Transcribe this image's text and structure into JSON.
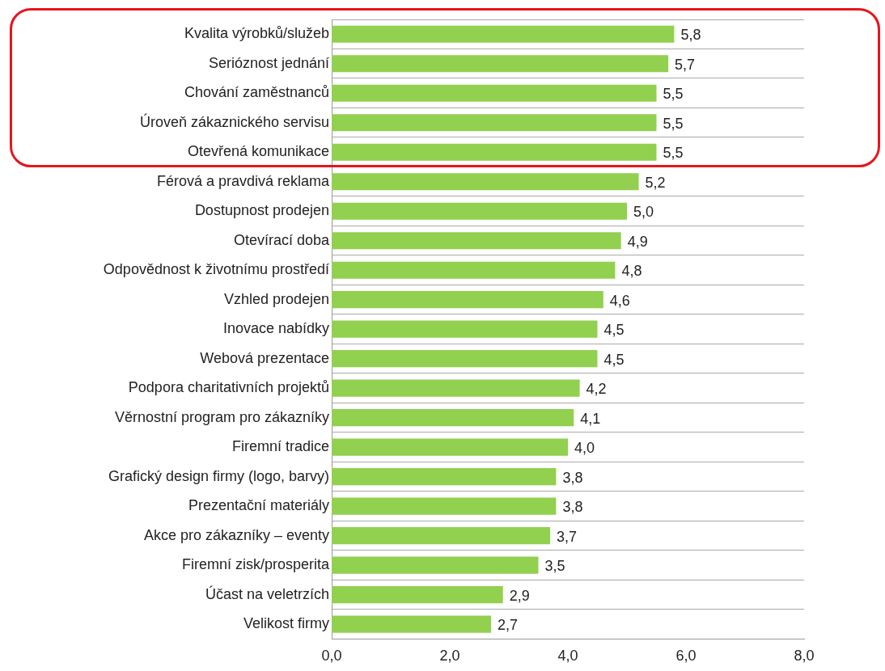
{
  "chart_data": {
    "type": "bar",
    "orientation": "horizontal",
    "categories": [
      "Kvalita výrobků/služeb",
      "Serióznost jednání",
      "Chování zaměstnanců",
      "Úroveň zákaznického servisu",
      "Otevřená komunikace",
      "Férová a pravdivá reklama",
      "Dostupnost prodejen",
      "Otevírací doba",
      "Odpovědnost k životnímu prostředí",
      "Vzhled prodejen",
      "Inovace nabídky",
      "Webová prezentace",
      "Podpora charitativních projektů",
      "Věrnostní program pro zákazníky",
      "Firemní tradice",
      "Grafický design firmy (logo, barvy)",
      "Prezentační materiály",
      "Akce pro zákazníky – eventy",
      "Firemní zisk/prosperita",
      "Účast na veletrzích",
      "Velikost firmy"
    ],
    "values": [
      5.8,
      5.7,
      5.5,
      5.5,
      5.5,
      5.2,
      5.0,
      4.9,
      4.8,
      4.6,
      4.5,
      4.5,
      4.2,
      4.1,
      4.0,
      3.8,
      3.8,
      3.7,
      3.5,
      2.9,
      2.7
    ],
    "value_labels": [
      "5,8",
      "5,7",
      "5,5",
      "5,5",
      "5,5",
      "5,2",
      "5,0",
      "4,9",
      "4,8",
      "4,6",
      "4,5",
      "4,5",
      "4,2",
      "4,1",
      "4,0",
      "3,8",
      "3,8",
      "3,7",
      "3,5",
      "2,9",
      "2,7"
    ],
    "color": "#92d050",
    "xlim": [
      0,
      8
    ],
    "xticks": [
      {
        "value": 0,
        "label": "0,0"
      },
      {
        "value": 2,
        "label": "2,0"
      },
      {
        "value": 4,
        "label": "4,0"
      },
      {
        "value": 6,
        "label": "6,0"
      },
      {
        "value": 8,
        "label": "8,0"
      }
    ],
    "grid": "y",
    "legend": false
  }
}
